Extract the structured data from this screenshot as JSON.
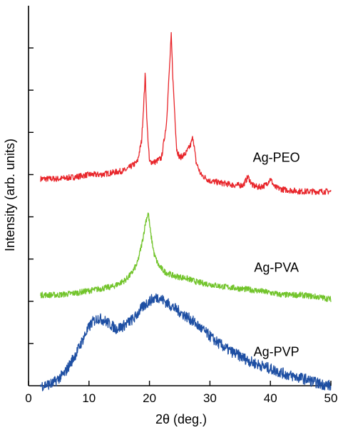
{
  "chart_data": {
    "type": "line",
    "title": "",
    "xlabel": "2θ (deg.)",
    "ylabel": "Intensity (arb. units)",
    "xlim": [
      0,
      50
    ],
    "ylim": [
      0,
      9
    ],
    "x_ticks": [
      0,
      10,
      20,
      30,
      40,
      50
    ],
    "x_tick_labels": [
      "0",
      "10",
      "20",
      "30",
      "40",
      "50"
    ],
    "y_tick_labels_shown": false,
    "y_ticks": [
      1,
      2,
      3,
      4,
      5,
      6,
      7,
      8
    ],
    "grid": false,
    "legend": "none",
    "series": [
      {
        "name": "Ag-PEO",
        "color": "#e8262b",
        "x": [
          2,
          5,
          8,
          10,
          12,
          14,
          16,
          17,
          18,
          18.7,
          19.1,
          19.3,
          19.6,
          20,
          21,
          22,
          22.8,
          23.3,
          23.6,
          23.9,
          24.5,
          25,
          26,
          26.4,
          26.8,
          27.2,
          27.7,
          28.5,
          30,
          32,
          34,
          35.5,
          36.3,
          37,
          38,
          39.2,
          40,
          40.7,
          42,
          45,
          48,
          50
        ],
        "y": [
          4.9,
          4.9,
          4.95,
          5.0,
          5.0,
          5.05,
          5.1,
          5.2,
          5.3,
          5.8,
          6.8,
          7.4,
          6.2,
          5.3,
          5.3,
          5.4,
          6.2,
          7.5,
          8.3,
          7.2,
          5.6,
          5.4,
          5.5,
          5.6,
          5.7,
          5.9,
          5.3,
          5.0,
          4.85,
          4.8,
          4.75,
          4.75,
          4.95,
          4.75,
          4.7,
          4.75,
          4.9,
          4.7,
          4.65,
          4.6,
          4.6,
          4.6
        ]
      },
      {
        "name": "Ag-PVA",
        "color": "#72c42b",
        "x": [
          2,
          5,
          8,
          10,
          12,
          14,
          16,
          17,
          18,
          18.8,
          19.4,
          19.8,
          20.2,
          20.8,
          21.5,
          22.5,
          24,
          26,
          28,
          30,
          32,
          35,
          38,
          40,
          42,
          45,
          48,
          50
        ],
        "y": [
          2.15,
          2.15,
          2.2,
          2.25,
          2.3,
          2.35,
          2.5,
          2.65,
          2.9,
          3.4,
          3.9,
          4.1,
          3.6,
          3.1,
          2.85,
          2.7,
          2.6,
          2.55,
          2.45,
          2.4,
          2.35,
          2.3,
          2.25,
          2.2,
          2.15,
          2.15,
          2.1,
          2.05
        ]
      },
      {
        "name": "Ag-PVP",
        "color": "#1e4fa3",
        "x": [
          2,
          4,
          6,
          8,
          9.5,
          10.5,
          11.5,
          12.5,
          13.5,
          14.5,
          15.5,
          16.5,
          17.5,
          18.5,
          19.5,
          20.5,
          21.5,
          22.5,
          23.5,
          25,
          27,
          29,
          31,
          33,
          35,
          37,
          40,
          43,
          46,
          48,
          50
        ],
        "y": [
          0,
          0.05,
          0.3,
          0.8,
          1.25,
          1.5,
          1.6,
          1.55,
          1.45,
          1.35,
          1.4,
          1.5,
          1.6,
          1.8,
          1.95,
          2.05,
          2.1,
          2.0,
          1.9,
          1.75,
          1.55,
          1.3,
          1.05,
          0.85,
          0.7,
          0.55,
          0.4,
          0.25,
          0.15,
          0.05,
          0.0
        ]
      }
    ],
    "annotations": [
      {
        "text": "Ag-PEO",
        "x": 41,
        "y": 5.3
      },
      {
        "text": "Ag-PVA",
        "x": 41,
        "y": 2.7
      },
      {
        "text": "Ag-PVP",
        "x": 41,
        "y": 0.7
      }
    ]
  }
}
